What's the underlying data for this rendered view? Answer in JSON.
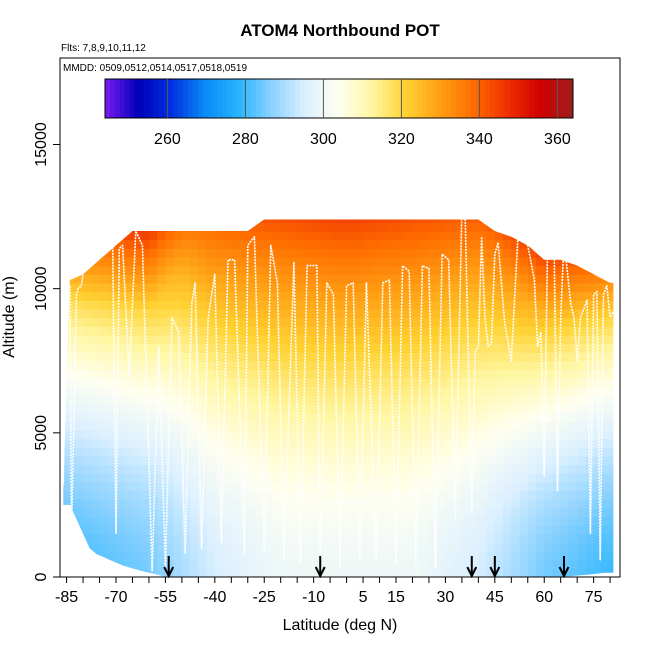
{
  "chart_data": {
    "type": "heatmap",
    "title": "ATOM4 Northbound POT",
    "subtitle_flights": "Flts: 7,8,9,10,11,12",
    "subtitle_dates": "MMDD: 0509,0512,0514,0517,0518,0519",
    "xlabel": "Latitude (deg N)",
    "ylabel": "Altitude (m)",
    "xlim": [
      -87,
      83
    ],
    "ylim": [
      0,
      18000
    ],
    "x_ticks": [
      -85,
      -70,
      -55,
      -40,
      -25,
      -10,
      5,
      15,
      30,
      45,
      60,
      75
    ],
    "x_tick_labels": [
      "-85",
      "-70",
      "-55",
      "-40",
      "-25",
      "-10",
      "5",
      "15",
      "30",
      "45",
      "60",
      "75"
    ],
    "y_ticks": [
      0,
      5000,
      10000,
      15000
    ],
    "y_tick_labels": [
      "0",
      "5000",
      "10000",
      "15000"
    ],
    "colorbar": {
      "range": [
        244,
        364
      ],
      "ticks": [
        260,
        280,
        300,
        320,
        340,
        360
      ],
      "tick_labels": [
        "260",
        "280",
        "300",
        "320",
        "340",
        "360"
      ],
      "colors": [
        "#7a1cf0",
        "#0000b8",
        "#0030e0",
        "#0a8cf5",
        "#28b4ff",
        "#8cd2ff",
        "#dcf0ff",
        "#fffff0",
        "#fff6a0",
        "#ffd232",
        "#ffa014",
        "#ff6e00",
        "#f03200",
        "#d20000",
        "#9c1e1e"
      ]
    },
    "arrow_markers_lat": [
      -54,
      -8,
      38,
      45,
      66
    ],
    "coverage_top_m": [
      [
        -86,
        3000
      ],
      [
        -84,
        10300
      ],
      [
        -80,
        10500
      ],
      [
        -75,
        11000
      ],
      [
        -70,
        11500
      ],
      [
        -65,
        12000
      ],
      [
        -60,
        12000
      ],
      [
        -55,
        12000
      ],
      [
        -50,
        12000
      ],
      [
        -45,
        12000
      ],
      [
        -40,
        12000
      ],
      [
        -35,
        12000
      ],
      [
        -30,
        12000
      ],
      [
        -25,
        12400
      ],
      [
        -20,
        12400
      ],
      [
        -15,
        12400
      ],
      [
        -10,
        12400
      ],
      [
        -5,
        12400
      ],
      [
        0,
        12400
      ],
      [
        5,
        12400
      ],
      [
        10,
        12400
      ],
      [
        15,
        12400
      ],
      [
        20,
        12400
      ],
      [
        25,
        12400
      ],
      [
        30,
        12400
      ],
      [
        35,
        12400
      ],
      [
        40,
        12400
      ],
      [
        45,
        12000
      ],
      [
        50,
        11800
      ],
      [
        55,
        11500
      ],
      [
        60,
        11000
      ],
      [
        65,
        11000
      ],
      [
        70,
        10800
      ],
      [
        75,
        10500
      ],
      [
        80,
        10200
      ]
    ],
    "coverage_bottom_m": [
      [
        -86,
        2500
      ],
      [
        -84,
        2500
      ],
      [
        -82,
        2000
      ],
      [
        -80,
        1500
      ],
      [
        -78,
        1000
      ],
      [
        -76,
        800
      ],
      [
        -72,
        600
      ],
      [
        -68,
        400
      ],
      [
        -65,
        300
      ],
      [
        -62,
        200
      ],
      [
        -58,
        100
      ],
      [
        -55,
        0
      ],
      [
        65,
        0
      ],
      [
        70,
        50
      ],
      [
        75,
        100
      ],
      [
        78,
        150
      ]
    ],
    "field_model": {
      "tropopause_m": [
        [
          -86,
          9500
        ],
        [
          -60,
          9200
        ],
        [
          -50,
          11000
        ],
        [
          -40,
          12000
        ],
        [
          0,
          12500
        ],
        [
          40,
          12400
        ],
        [
          50,
          10500
        ],
        [
          60,
          9000
        ],
        [
          80,
          9000
        ]
      ],
      "theta_surface_K": [
        [
          -86,
          280
        ],
        [
          -60,
          285
        ],
        [
          -40,
          295
        ],
        [
          -20,
          300
        ],
        [
          0,
          300
        ],
        [
          20,
          300
        ],
        [
          40,
          295
        ],
        [
          60,
          285
        ],
        [
          80,
          280
        ]
      ],
      "theta_tropopause_K": [
        [
          -86,
          318
        ],
        [
          -60,
          320
        ],
        [
          -40,
          338
        ],
        [
          0,
          345
        ],
        [
          40,
          340
        ],
        [
          60,
          325
        ],
        [
          80,
          320
        ]
      ],
      "theta_lower_strat_top_K": [
        [
          -86,
          345
        ],
        [
          -60,
          348
        ],
        [
          -40,
          355
        ],
        [
          0,
          362
        ],
        [
          40,
          358
        ],
        [
          60,
          352
        ],
        [
          80,
          350
        ]
      ]
    },
    "flight_track": [
      [
        -86,
        3200
      ],
      [
        -85.5,
        10100
      ],
      [
        -84,
        10100
      ],
      [
        -83.5,
        1500
      ],
      [
        -82,
        9800
      ],
      [
        -81.5,
        10000
      ],
      [
        -80.5,
        10100
      ],
      [
        -79,
        11300
      ],
      [
        -75,
        11300
      ],
      [
        -72,
        11900
      ],
      [
        -71,
        11500
      ],
      [
        -70,
        1500
      ],
      [
        -69,
        11400
      ],
      [
        -68,
        11500
      ],
      [
        -66,
        7000
      ],
      [
        -64,
        12000
      ],
      [
        -62,
        11500
      ],
      [
        -59,
        200
      ],
      [
        -57,
        8000
      ],
      [
        -55,
        300
      ],
      [
        -53,
        9000
      ],
      [
        -51,
        8500
      ],
      [
        -49,
        800
      ],
      [
        -47,
        9500
      ],
      [
        -46,
        10200
      ],
      [
        -44,
        1000
      ],
      [
        -42,
        9000
      ],
      [
        -40,
        10500
      ],
      [
        -38,
        1200
      ],
      [
        -36,
        11000
      ],
      [
        -34,
        11000
      ],
      [
        -31,
        800
      ],
      [
        -30,
        11500
      ],
      [
        -28,
        11800
      ],
      [
        -25,
        900
      ],
      [
        -23,
        11500
      ],
      [
        -21,
        10200
      ],
      [
        -19,
        600
      ],
      [
        -16,
        10900
      ],
      [
        -14,
        500
      ],
      [
        -12,
        10800
      ],
      [
        -9,
        10800
      ],
      [
        -8,
        300
      ],
      [
        -6,
        10200
      ],
      [
        -4,
        9800
      ],
      [
        -2,
        400
      ],
      [
        0,
        10100
      ],
      [
        2,
        10200
      ],
      [
        4,
        500
      ],
      [
        6,
        10200
      ],
      [
        9,
        500
      ],
      [
        11,
        10200
      ],
      [
        13,
        10300
      ],
      [
        15,
        400
      ],
      [
        17,
        10800
      ],
      [
        19,
        10600
      ],
      [
        21,
        400
      ],
      [
        23,
        10800
      ],
      [
        25,
        10700
      ],
      [
        27,
        300
      ],
      [
        29,
        11200
      ],
      [
        31,
        11000
      ],
      [
        33,
        2000
      ],
      [
        35,
        12800
      ],
      [
        36,
        12500
      ],
      [
        38,
        2200
      ],
      [
        39,
        7800
      ],
      [
        40,
        8000
      ],
      [
        41,
        11800
      ],
      [
        42,
        9000
      ],
      [
        43,
        8000
      ],
      [
        44,
        8100
      ],
      [
        45,
        11200
      ],
      [
        46,
        11600
      ],
      [
        48,
        8800
      ],
      [
        50,
        7500
      ],
      [
        52,
        11800
      ],
      [
        55,
        11500
      ],
      [
        57,
        10300
      ],
      [
        58,
        8000
      ],
      [
        59,
        8500
      ],
      [
        60,
        3500
      ],
      [
        61,
        11400
      ],
      [
        63,
        11500
      ],
      [
        64,
        3000
      ],
      [
        65,
        9000
      ],
      [
        66,
        11700
      ],
      [
        68,
        9500
      ],
      [
        69,
        9000
      ],
      [
        70,
        7500
      ],
      [
        71,
        9000
      ],
      [
        73,
        9600
      ],
      [
        74,
        1500
      ],
      [
        75,
        9800
      ],
      [
        76,
        9900
      ],
      [
        77,
        600
      ],
      [
        78,
        9800
      ],
      [
        79,
        10100
      ],
      [
        80,
        9000
      ],
      [
        81,
        9200
      ]
    ]
  }
}
